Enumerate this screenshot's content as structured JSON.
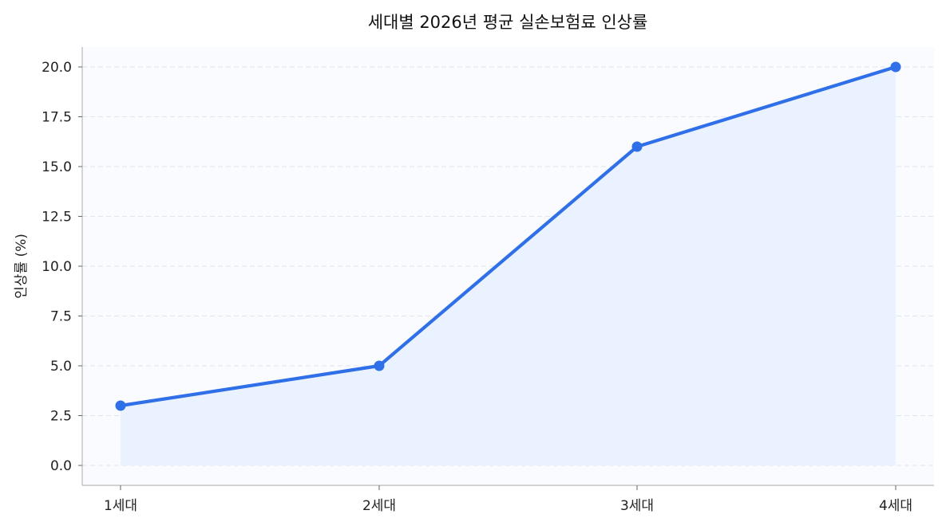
{
  "chart_data": {
    "type": "line",
    "title": "세대별 2026년 평균 실손보험료 인상률",
    "xlabel": "",
    "ylabel": "인상률 (%)",
    "categories": [
      "1세대",
      "2세대",
      "3세대",
      "4세대"
    ],
    "series": [
      {
        "values": [
          3.0,
          5.0,
          16.0,
          20.0
        ],
        "color": "#2f6fe8",
        "area_fill": "#eaf1ff"
      }
    ],
    "ylim": [
      -1.0,
      21.0
    ],
    "yticks": [
      "0.0",
      "2.5",
      "5.0",
      "7.5",
      "10.0",
      "12.5",
      "15.0",
      "17.5",
      "20.0"
    ],
    "grid": true,
    "legend": "none",
    "background_color": "#f9fbff"
  }
}
